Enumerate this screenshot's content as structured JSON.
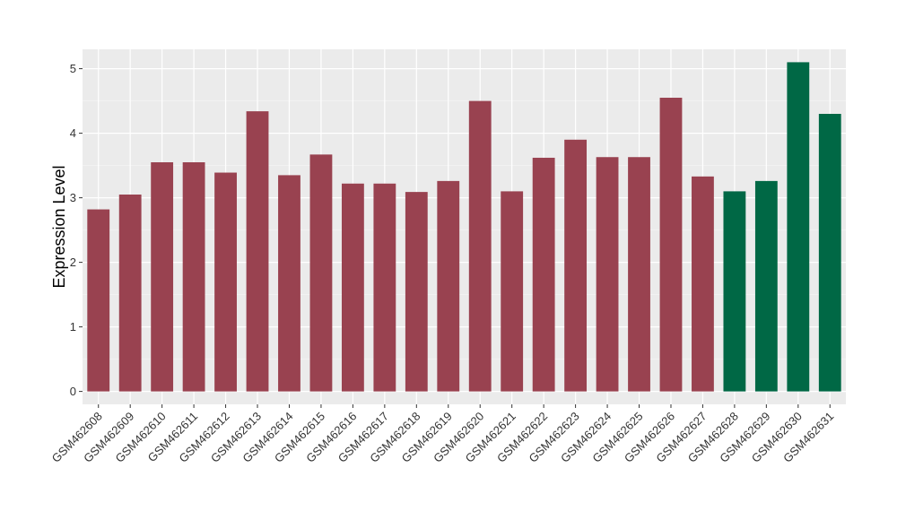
{
  "chart_data": {
    "type": "bar",
    "title": "",
    "xlabel": "",
    "ylabel": "Expression Level",
    "ylim": [
      -0.2,
      5.3
    ],
    "yticks": [
      0,
      1,
      2,
      3,
      4,
      5
    ],
    "grid": true,
    "legend": "none",
    "categories": [
      "GSM462608",
      "GSM462609",
      "GSM462610",
      "GSM462611",
      "GSM462612",
      "GSM462613",
      "GSM462614",
      "GSM462615",
      "GSM462616",
      "GSM462617",
      "GSM462618",
      "GSM462619",
      "GSM462620",
      "GSM462621",
      "GSM462622",
      "GSM462623",
      "GSM462624",
      "GSM462625",
      "GSM462626",
      "GSM462627",
      "GSM462628",
      "GSM462629",
      "GSM462630",
      "GSM462631"
    ],
    "values": [
      2.82,
      3.05,
      3.55,
      3.55,
      3.39,
      4.34,
      3.35,
      3.67,
      3.22,
      3.22,
      3.09,
      3.26,
      4.5,
      3.1,
      3.62,
      3.9,
      3.63,
      3.63,
      4.55,
      3.33,
      3.1,
      3.26,
      5.1,
      4.3
    ],
    "groups": [
      "a",
      "a",
      "a",
      "a",
      "a",
      "a",
      "a",
      "a",
      "a",
      "a",
      "a",
      "a",
      "a",
      "a",
      "a",
      "a",
      "a",
      "a",
      "a",
      "a",
      "b",
      "b",
      "b",
      "b"
    ],
    "colors": {
      "a": "#994250",
      "b": "#006845",
      "panel": "#ebebeb",
      "grid_major": "#ffffff",
      "grid_minor": "#f5f5f5"
    }
  }
}
